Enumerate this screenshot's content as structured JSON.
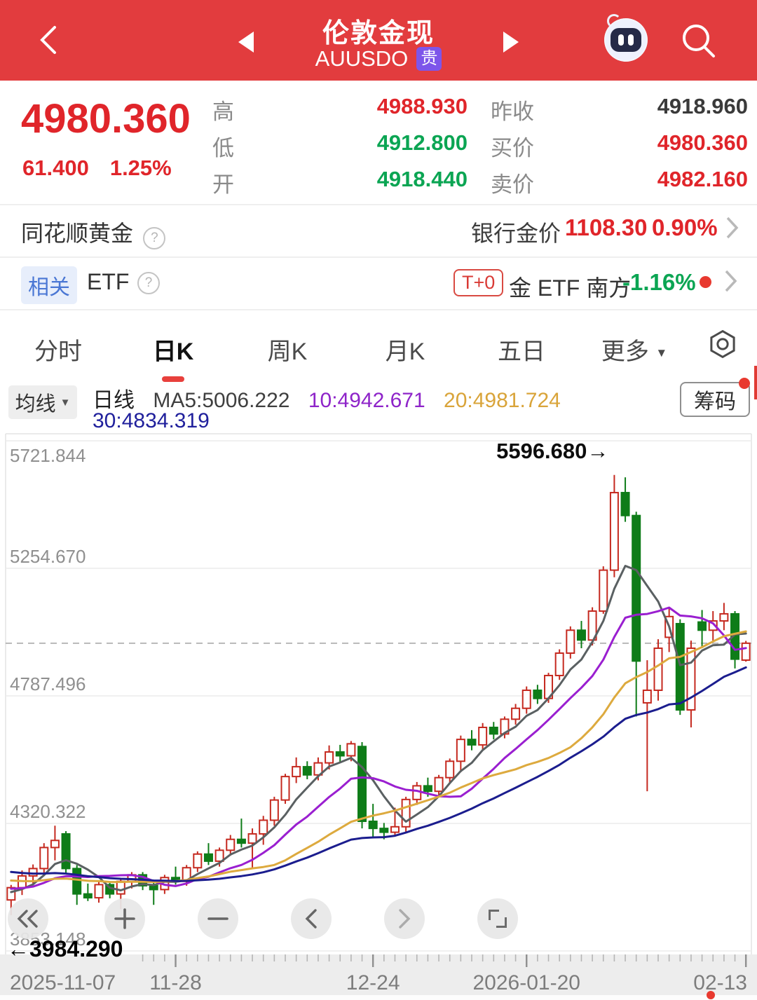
{
  "theme": {
    "header_bg": "#e23c3e",
    "up_red": "#e0252a",
    "down_green": "#0ba553",
    "badge_purple": "#7d55ea",
    "tab_active_underline": "#e8403c"
  },
  "header": {
    "title": "伦敦金现",
    "symbol": "AUUSDO",
    "market_badge": "贵"
  },
  "quote": {
    "price": "4980.360",
    "change": "61.400",
    "change_pct": "1.25%",
    "col1": [
      {
        "label": "高",
        "value": "4988.930"
      },
      {
        "label": "低",
        "value": "4912.800"
      },
      {
        "label": "开",
        "value": "4918.440"
      }
    ],
    "col2": [
      {
        "label": "昨收",
        "value": "4918.960"
      },
      {
        "label": "买价",
        "value": "4980.360"
      },
      {
        "label": "卖价",
        "value": "4982.160"
      }
    ]
  },
  "gold_row": {
    "left": "同花顺黄金",
    "right_label": "银行金价",
    "price": "1108.30",
    "pct": "0.90%"
  },
  "etf_row": {
    "badge": "相关",
    "left": "ETF",
    "t0_badge": "T+0",
    "name": "金 ETF 南方",
    "pct": "-1.16%"
  },
  "tabs": {
    "items": [
      "分时",
      "日K",
      "周K",
      "月K",
      "五日",
      "更多"
    ],
    "active": "日K"
  },
  "legend": {
    "dropdown": "均线",
    "period": "日线",
    "ma5": "MA5:5006.222",
    "ma10": "10:4942.671",
    "ma20": "20:4981.724",
    "ma30": "30:4834.319",
    "chips_button": "筹码"
  },
  "chart_data": {
    "type": "candlestick",
    "title": "伦敦金现 AUUSDO 日K",
    "y_ticks": [
      5721.844,
      5254.67,
      4787.496,
      4320.322,
      3853.148
    ],
    "current_price_line": 4980.36,
    "high_annotation": {
      "text": "5596.680→",
      "index": 55
    },
    "low_annotation": {
      "text": "←3984.290"
    },
    "x_labels": [
      {
        "text": "2025-11-07",
        "index": 0,
        "align": "start"
      },
      {
        "text": "11-28",
        "index": 15,
        "align": "middle"
      },
      {
        "text": "12-24",
        "index": 33,
        "align": "middle"
      },
      {
        "text": "2026-01-20",
        "index": 47,
        "align": "middle"
      },
      {
        "text": "02-13",
        "index": 67,
        "align": "end",
        "dot": true
      }
    ],
    "ma_periods": [
      5,
      10,
      20,
      30
    ],
    "colors": {
      "up": "#c5291f",
      "down": "#0e7c18",
      "ma5": "#5a6062",
      "ma10": "#9a1fd0",
      "ma20": "#ddaa3e",
      "ma30": "#1b1d8e",
      "grid": "#ececec",
      "dashed": "#b0b0b0",
      "axis_text": "#8f8f8f",
      "strip_bg": "#ededed",
      "date_text": "#7d7d7d",
      "dot": "#e8392f"
    },
    "candles": [
      [
        4040,
        4095,
        3984.29,
        4085
      ],
      [
        4085,
        4148,
        4058,
        4128
      ],
      [
        4128,
        4170,
        4100,
        4155
      ],
      [
        4155,
        4248,
        4138,
        4232
      ],
      [
        4232,
        4312,
        4185,
        4258
      ],
      [
        4282,
        4292,
        4138,
        4155
      ],
      [
        4155,
        4168,
        4022,
        4062
      ],
      [
        4062,
        4100,
        4036,
        4048
      ],
      [
        4048,
        4108,
        4030,
        4096
      ],
      [
        4096,
        4102,
        4046,
        4062
      ],
      [
        4062,
        4118,
        4006,
        4108
      ],
      [
        4108,
        4142,
        4082,
        4132
      ],
      [
        4132,
        4142,
        4076,
        4092
      ],
      [
        4092,
        4112,
        4022,
        4078
      ],
      [
        4078,
        4132,
        4062,
        4122
      ],
      [
        4122,
        4162,
        4096,
        4108
      ],
      [
        4108,
        4168,
        4092,
        4158
      ],
      [
        4158,
        4218,
        4142,
        4208
      ],
      [
        4208,
        4248,
        4168,
        4182
      ],
      [
        4182,
        4232,
        4162,
        4222
      ],
      [
        4222,
        4278,
        4202,
        4262
      ],
      [
        4262,
        4338,
        4232,
        4248
      ],
      [
        4248,
        4302,
        4158,
        4282
      ],
      [
        4282,
        4348,
        4242,
        4332
      ],
      [
        4332,
        4418,
        4312,
        4406
      ],
      [
        4406,
        4502,
        4392,
        4492
      ],
      [
        4492,
        4562,
        4468,
        4528
      ],
      [
        4528,
        4548,
        4482,
        4498
      ],
      [
        4498,
        4562,
        4478,
        4542
      ],
      [
        4542,
        4606,
        4518,
        4582
      ],
      [
        4582,
        4608,
        4542,
        4568
      ],
      [
        4568,
        4622,
        4548,
        4612
      ],
      [
        4602,
        4618,
        4302,
        4328
      ],
      [
        4328,
        4392,
        4272,
        4302
      ],
      [
        4302,
        4322,
        4262,
        4288
      ],
      [
        4288,
        4378,
        4272,
        4308
      ],
      [
        4308,
        4418,
        4288,
        4408
      ],
      [
        4408,
        4472,
        4388,
        4458
      ],
      [
        4458,
        4488,
        4418,
        4438
      ],
      [
        4438,
        4498,
        4418,
        4488
      ],
      [
        4488,
        4558,
        4468,
        4548
      ],
      [
        4548,
        4642,
        4508,
        4628
      ],
      [
        4628,
        4662,
        4588,
        4608
      ],
      [
        4608,
        4688,
        4592,
        4672
      ],
      [
        4672,
        4692,
        4628,
        4648
      ],
      [
        4648,
        4712,
        4632,
        4702
      ],
      [
        4702,
        4758,
        4682,
        4742
      ],
      [
        4742,
        4822,
        4722,
        4808
      ],
      [
        4808,
        4828,
        4758,
        4778
      ],
      [
        4778,
        4872,
        4762,
        4862
      ],
      [
        4862,
        4958,
        4846,
        4944
      ],
      [
        4944,
        5042,
        4924,
        5028
      ],
      [
        5028,
        5062,
        4962,
        4992
      ],
      [
        4992,
        5112,
        4972,
        5098
      ],
      [
        5098,
        5262,
        5088,
        5248
      ],
      [
        5248,
        5596.68,
        5222,
        5532
      ],
      [
        5532,
        5588,
        5425,
        5448
      ],
      [
        5448,
        5462,
        4712,
        4915
      ],
      [
        4762,
        4918,
        4438,
        4808
      ],
      [
        4808,
        4995,
        4770,
        4962
      ],
      [
        5002,
        5108,
        4948,
        5078
      ],
      [
        5052,
        5068,
        4718,
        4736
      ],
      [
        4736,
        4990,
        4672,
        4962
      ],
      [
        5058,
        5102,
        4962,
        5028
      ],
      [
        5028,
        5098,
        4988,
        5062
      ],
      [
        5062,
        5128,
        5028,
        5088
      ],
      [
        5088,
        5098,
        4888,
        4922
      ],
      [
        4918.44,
        4988.93,
        4912.8,
        4980.36
      ]
    ]
  },
  "controls": {
    "buttons": [
      "rewind",
      "zoom-in",
      "zoom-out",
      "pan-left",
      "pan-right",
      "fullscreen"
    ]
  }
}
